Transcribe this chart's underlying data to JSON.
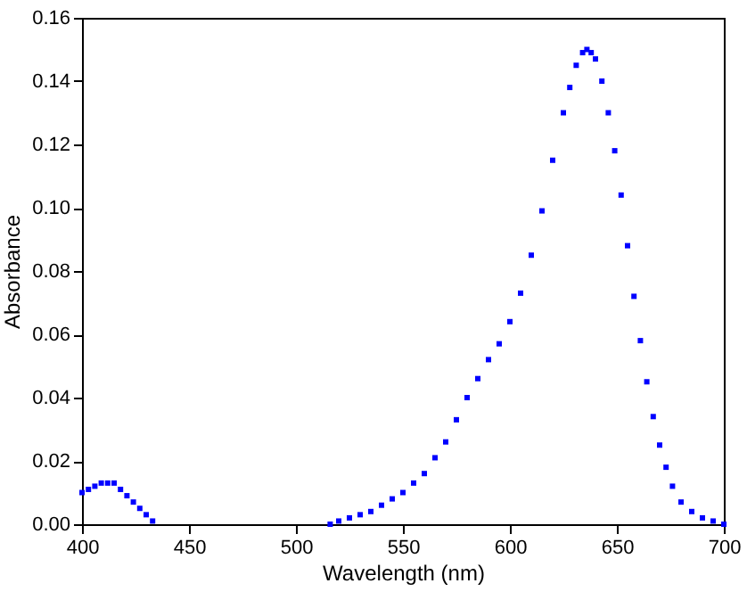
{
  "chart_data": {
    "type": "scatter",
    "xlabel": "Wavelength (nm)",
    "ylabel": "Absorbance",
    "marker": "square",
    "x": [
      400,
      403,
      406,
      409,
      412,
      415,
      418,
      421,
      424,
      427,
      430,
      433,
      516,
      520,
      525,
      530,
      535,
      540,
      545,
      550,
      555,
      560,
      565,
      570,
      575,
      580,
      585,
      590,
      595,
      600,
      605,
      610,
      615,
      620,
      625,
      628,
      631,
      634,
      636,
      638,
      640,
      643,
      646,
      649,
      652,
      655,
      658,
      661,
      664,
      667,
      670,
      673,
      676,
      680,
      685,
      690,
      695,
      700
    ],
    "series": [
      {
        "color": "#0000ff",
        "values": [
          0.01,
          0.011,
          0.012,
          0.013,
          0.013,
          0.013,
          0.011,
          0.009,
          0.007,
          0.005,
          0.003,
          0.001,
          0.0,
          0.001,
          0.002,
          0.003,
          0.004,
          0.006,
          0.008,
          0.01,
          0.013,
          0.016,
          0.021,
          0.026,
          0.033,
          0.04,
          0.046,
          0.052,
          0.057,
          0.064,
          0.073,
          0.085,
          0.099,
          0.115,
          0.13,
          0.138,
          0.145,
          0.149,
          0.15,
          0.149,
          0.147,
          0.14,
          0.13,
          0.118,
          0.104,
          0.088,
          0.072,
          0.058,
          0.045,
          0.034,
          0.025,
          0.018,
          0.012,
          0.007,
          0.004,
          0.002,
          0.001,
          0.0
        ]
      }
    ],
    "xlim": [
      400,
      700
    ],
    "xticks": [
      400,
      450,
      500,
      550,
      600,
      650,
      700
    ],
    "ylim": [
      0,
      0.16
    ],
    "yticks": [
      {
        "value": 0,
        "label": "0.00"
      },
      {
        "value": 0.02,
        "label": "0.02"
      },
      {
        "value": 0.04,
        "label": "0.04"
      },
      {
        "value": 0.06,
        "label": "0.06"
      },
      {
        "value": 0.08,
        "label": "0.08"
      },
      {
        "value": 0.1,
        "label": "0.10"
      },
      {
        "value": 0.12,
        "label": "0.12"
      },
      {
        "value": 0.14,
        "label": "0.14"
      },
      {
        "value": 0.16,
        "label": "0.16"
      }
    ]
  }
}
